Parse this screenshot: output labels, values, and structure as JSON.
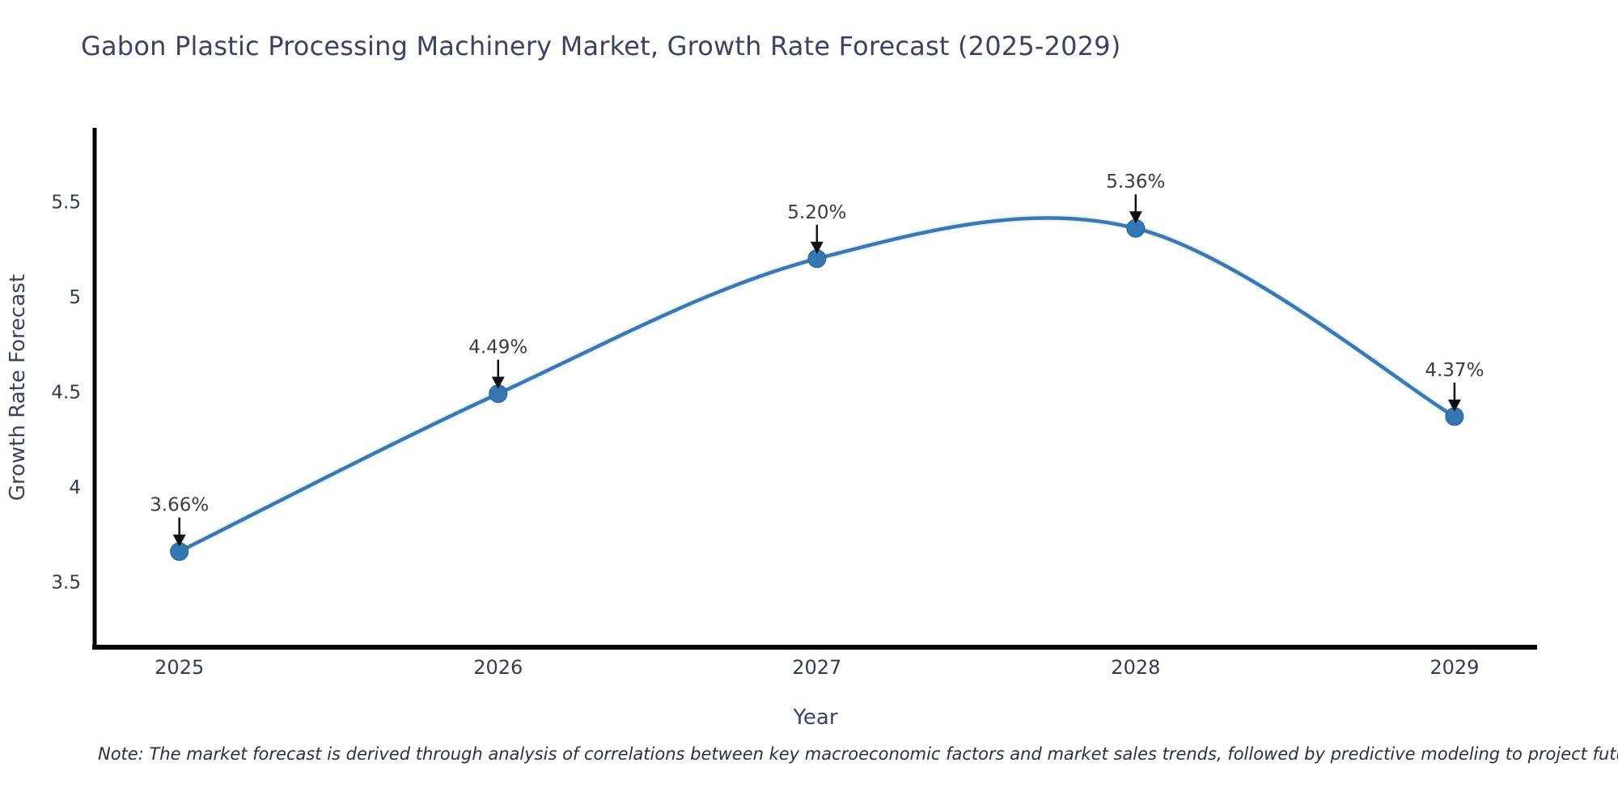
{
  "note": "Note: The market forecast is derived through analysis of correlations between key macroeconomic factors and market sales trends, followed by predictive modeling to project future sales",
  "chart_data": {
    "type": "line",
    "title": "Gabon Plastic Processing Machinery Market, Growth Rate Forecast (2025-2029)",
    "x": [
      2025,
      2026,
      2027,
      2028,
      2029
    ],
    "values": [
      3.66,
      4.49,
      5.2,
      5.36,
      4.37
    ],
    "point_labels": [
      "3.66%",
      "4.49%",
      "5.20%",
      "5.36%",
      "4.37%"
    ],
    "xtick_labels": [
      "2025",
      "2026",
      "2027",
      "2028",
      "2029"
    ],
    "yticks": [
      3.5,
      4,
      4.5,
      5,
      5.5
    ],
    "ytick_labels": [
      "3.5",
      "4",
      "4.5",
      "5",
      "5.5"
    ],
    "xlabel": "Year",
    "ylabel": "Growth Rate Forecast",
    "ylim": [
      3.16,
      5.9
    ],
    "grid": false,
    "legend": null,
    "smooth": true,
    "annotations": "black down-arrows from each percentage label to its data point"
  },
  "colors": {
    "line": "#3878b4",
    "line_halo": "#d6e6f5",
    "marker": "#3577b2",
    "marker_edge": "#2b5f94",
    "axis": "#000000",
    "tick_text": "#333c4e",
    "title_text": "#3b4264",
    "axis_title_text": "#3b4264",
    "annotation_text": "#353c44",
    "arrow": "#111111",
    "note_text": "#283044",
    "background": "#ffffff"
  }
}
